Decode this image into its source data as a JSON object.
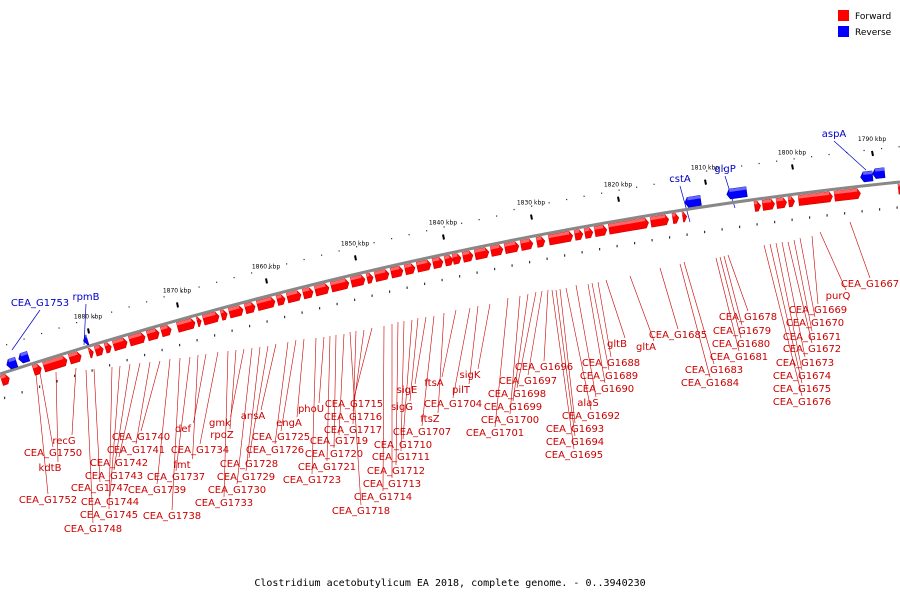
{
  "caption": "Clostridium acetobutylicum EA 2018, complete genome. - 0..3940230",
  "legend": [
    {
      "label": "Forward",
      "color": "#ff0000"
    },
    {
      "label": "Reverse",
      "color": "#0000ff"
    }
  ],
  "colors": {
    "forward": "#ff0000",
    "forward_dark": "#cc0000",
    "reverse": "#0000ff",
    "reverse_dark": "#0000aa",
    "backbone": "#888888",
    "label_forward": "#cc0000",
    "label_reverse": "#0000cc"
  },
  "ticks": [
    "1790 kbp",
    "1800 kbp",
    "1810 kbp",
    "1820 kbp",
    "1830 kbp",
    "1840 kbp",
    "1850 kbp",
    "1860 kbp",
    "1870 kbp",
    "1880 kbp"
  ],
  "reverse_labels": [
    "aspA",
    "glgP",
    "cstA",
    "rpmB",
    "CEA_G1753"
  ],
  "forward_labels": [
    "CEA_G1667",
    "purQ",
    "CEA_G1669",
    "CEA_G1670",
    "CEA_G1671",
    "CEA_G1672",
    "CEA_G1673",
    "CEA_G1674",
    "CEA_G1675",
    "CEA_G1676",
    "CEA_G1678",
    "CEA_G1679",
    "CEA_G1680",
    "CEA_G1681",
    "CEA_G1683",
    "CEA_G1684",
    "CEA_G1685",
    "gltA",
    "gltB",
    "CEA_G1688",
    "CEA_G1689",
    "CEA_G1690",
    "alaS",
    "CEA_G1692",
    "CEA_G1693",
    "CEA_G1694",
    "CEA_G1695",
    "CEA_G1696",
    "CEA_G1697",
    "CEA_G1698",
    "CEA_G1699",
    "CEA_G1700",
    "CEA_G1701",
    "sigK",
    "pilT",
    "CEA_G1704",
    "ftsA",
    "ftsZ",
    "CEA_G1707",
    "sigE",
    "sigG",
    "CEA_G1710",
    "CEA_G1711",
    "CEA_G1712",
    "CEA_G1713",
    "CEA_G1714",
    "CEA_G1715",
    "CEA_G1716",
    "CEA_G1717",
    "CEA_G1718",
    "CEA_G1719",
    "CEA_G1720",
    "CEA_G1721",
    "phoU",
    "CEA_G1723",
    "engA",
    "CEA_G1725",
    "CEA_G1726",
    "ansA",
    "CEA_G1728",
    "CEA_G1729",
    "CEA_G1730",
    "gmk",
    "rpoZ",
    "CEA_G1733",
    "CEA_G1734",
    "def",
    "fmt",
    "CEA_G1737",
    "CEA_G1738",
    "CEA_G1739",
    "CEA_G1740",
    "CEA_G1741",
    "CEA_G1742",
    "CEA_G1743",
    "CEA_G1744",
    "CEA_G1745",
    "recG",
    "CEA_G1747",
    "CEA_G1748",
    "kdtB",
    "CEA_G1750",
    "CEA_G1752"
  ]
}
